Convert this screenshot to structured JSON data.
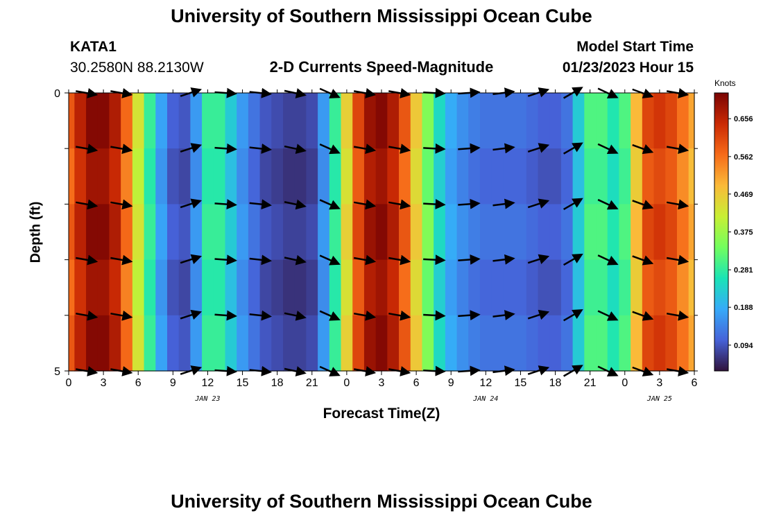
{
  "title": "University of Southern Mississippi Ocean Cube",
  "title_repeat": "University of Southern Mississippi Ocean Cube",
  "station": {
    "id": "KATA1",
    "coords": "30.2580N  88.2130W"
  },
  "subtitle": "2-D Currents Speed-Magnitude",
  "model_start": {
    "label": "Model Start Time",
    "value": "01/23/2023 Hour 15"
  },
  "chart_data": {
    "type": "heatmap",
    "xlabel": "Forecast Time(Z)",
    "ylabel": "Depth (ft)",
    "colorbar_unit": "Knots",
    "x_ticks": [
      "0",
      "3",
      "6",
      "9",
      "12",
      "15",
      "18",
      "21",
      "0",
      "3",
      "6",
      "9",
      "12",
      "15",
      "18",
      "21",
      "0",
      "3",
      "6"
    ],
    "x_hours": [
      0,
      3,
      6,
      9,
      12,
      15,
      18,
      21,
      24,
      27,
      30,
      33,
      36,
      39,
      42,
      45,
      48,
      51,
      54
    ],
    "date_labels": [
      {
        "text": "JAN 23",
        "hour": 12
      },
      {
        "text": "JAN 24",
        "hour": 36
      },
      {
        "text": "JAN 25",
        "hour": 51
      }
    ],
    "y_ticks": [
      "0",
      "5"
    ],
    "ylim": [
      0,
      5
    ],
    "xlim": [
      0,
      54
    ],
    "colorbar_ticks": [
      "0.656",
      "0.562",
      "0.469",
      "0.375",
      "0.281",
      "0.188",
      "0.094"
    ],
    "colorbar_values": [
      0.656,
      0.562,
      0.469,
      0.375,
      0.281,
      0.188,
      0.094
    ],
    "colorbar_range": [
      0.03,
      0.72
    ],
    "colorscale": [
      "#30123b",
      "#4662d8",
      "#36aaf9",
      "#1ae4b6",
      "#72fe5e",
      "#c8ef34",
      "#faba39",
      "#f66b19",
      "#ca2a04",
      "#7a0403"
    ],
    "speed_knots_by_hour": [
      [
        0,
        0.58
      ],
      [
        1,
        0.65
      ],
      [
        2,
        0.7
      ],
      [
        3,
        0.7
      ],
      [
        4,
        0.66
      ],
      [
        5,
        0.56
      ],
      [
        6,
        0.42
      ],
      [
        7,
        0.28
      ],
      [
        8,
        0.17
      ],
      [
        9,
        0.1
      ],
      [
        10,
        0.09
      ],
      [
        11,
        0.16
      ],
      [
        12,
        0.28
      ],
      [
        13,
        0.28
      ],
      [
        14,
        0.22
      ],
      [
        15,
        0.16
      ],
      [
        16,
        0.12
      ],
      [
        17,
        0.09
      ],
      [
        18,
        0.08
      ],
      [
        19,
        0.07
      ],
      [
        20,
        0.07
      ],
      [
        21,
        0.08
      ],
      [
        22,
        0.16
      ],
      [
        23,
        0.28
      ],
      [
        24,
        0.45
      ],
      [
        25,
        0.6
      ],
      [
        26,
        0.68
      ],
      [
        27,
        0.7
      ],
      [
        28,
        0.66
      ],
      [
        29,
        0.58
      ],
      [
        30,
        0.46
      ],
      [
        31,
        0.34
      ],
      [
        32,
        0.24
      ],
      [
        33,
        0.18
      ],
      [
        34,
        0.15
      ],
      [
        35,
        0.13
      ],
      [
        36,
        0.12
      ],
      [
        37,
        0.12
      ],
      [
        38,
        0.12
      ],
      [
        39,
        0.12
      ],
      [
        40,
        0.11
      ],
      [
        41,
        0.1
      ],
      [
        42,
        0.1
      ],
      [
        43,
        0.12
      ],
      [
        44,
        0.22
      ],
      [
        45,
        0.3
      ],
      [
        46,
        0.3
      ],
      [
        47,
        0.26
      ],
      [
        48,
        0.3
      ],
      [
        49,
        0.48
      ],
      [
        50,
        0.6
      ],
      [
        51,
        0.62
      ],
      [
        52,
        0.6
      ],
      [
        53,
        0.55
      ],
      [
        54,
        0.5
      ]
    ],
    "arrow_hours": [
      1.5,
      4.5,
      10.5,
      13.5,
      16.5,
      19.5,
      22.5,
      25.5,
      28.5,
      31.5,
      34.5,
      37.5,
      40.5,
      43.5,
      46.5,
      49.5,
      52.5
    ],
    "arrow_depths_ft": [
      0,
      1,
      2,
      3,
      4,
      5
    ],
    "arrow_direction_deg": [
      -10,
      -10,
      18,
      -4,
      -6,
      -12,
      -24,
      -10,
      -10,
      -3,
      4,
      7,
      18,
      30,
      -25,
      -20,
      -10
    ]
  }
}
